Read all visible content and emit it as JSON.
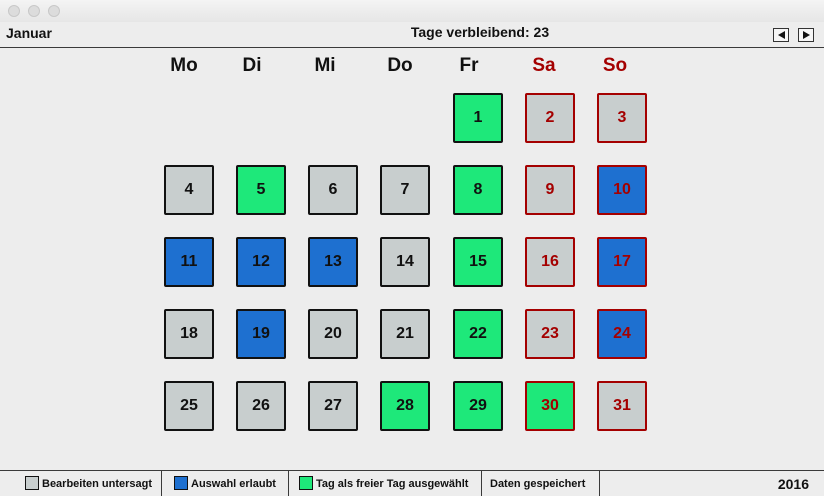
{
  "header": {
    "month": "Januar",
    "remaining": "Tage verbleibend: 23"
  },
  "weekdays": [
    "Mo",
    "Di",
    "Mi",
    "Do",
    "Fr",
    "Sa",
    "So"
  ],
  "colors": {
    "locked": "#c8cece",
    "allowed": "#1e70d0",
    "free_selected": "#1ee87a",
    "weekend": "#a40000"
  },
  "days": [
    {
      "label": "1",
      "status": "free"
    },
    {
      "label": "2",
      "status": "locked"
    },
    {
      "label": "3",
      "status": "locked"
    },
    {
      "label": "4",
      "status": "locked"
    },
    {
      "label": "5",
      "status": "free"
    },
    {
      "label": "6",
      "status": "locked"
    },
    {
      "label": "7",
      "status": "locked"
    },
    {
      "label": "8",
      "status": "free"
    },
    {
      "label": "9",
      "status": "locked"
    },
    {
      "label": "10",
      "status": "allowed"
    },
    {
      "label": "11",
      "status": "allowed"
    },
    {
      "label": "12",
      "status": "allowed"
    },
    {
      "label": "13",
      "status": "allowed"
    },
    {
      "label": "14",
      "status": "locked"
    },
    {
      "label": "15",
      "status": "free"
    },
    {
      "label": "16",
      "status": "locked"
    },
    {
      "label": "17",
      "status": "allowed"
    },
    {
      "label": "18",
      "status": "locked"
    },
    {
      "label": "19",
      "status": "allowed"
    },
    {
      "label": "20",
      "status": "locked"
    },
    {
      "label": "21",
      "status": "locked"
    },
    {
      "label": "22",
      "status": "free"
    },
    {
      "label": "23",
      "status": "locked"
    },
    {
      "label": "24",
      "status": "allowed"
    },
    {
      "label": "25",
      "status": "locked"
    },
    {
      "label": "26",
      "status": "locked"
    },
    {
      "label": "27",
      "status": "locked"
    },
    {
      "label": "28",
      "status": "free"
    },
    {
      "label": "29",
      "status": "free"
    },
    {
      "label": "30",
      "status": "free"
    },
    {
      "label": "31",
      "status": "locked"
    }
  ],
  "status_bar": {
    "legend_locked": "Bearbeiten untersagt",
    "legend_allowed": "Auswahl erlaubt",
    "legend_free": "Tag als freier Tag ausgewählt",
    "save_status": "Daten gespeichert",
    "year": "2016"
  }
}
